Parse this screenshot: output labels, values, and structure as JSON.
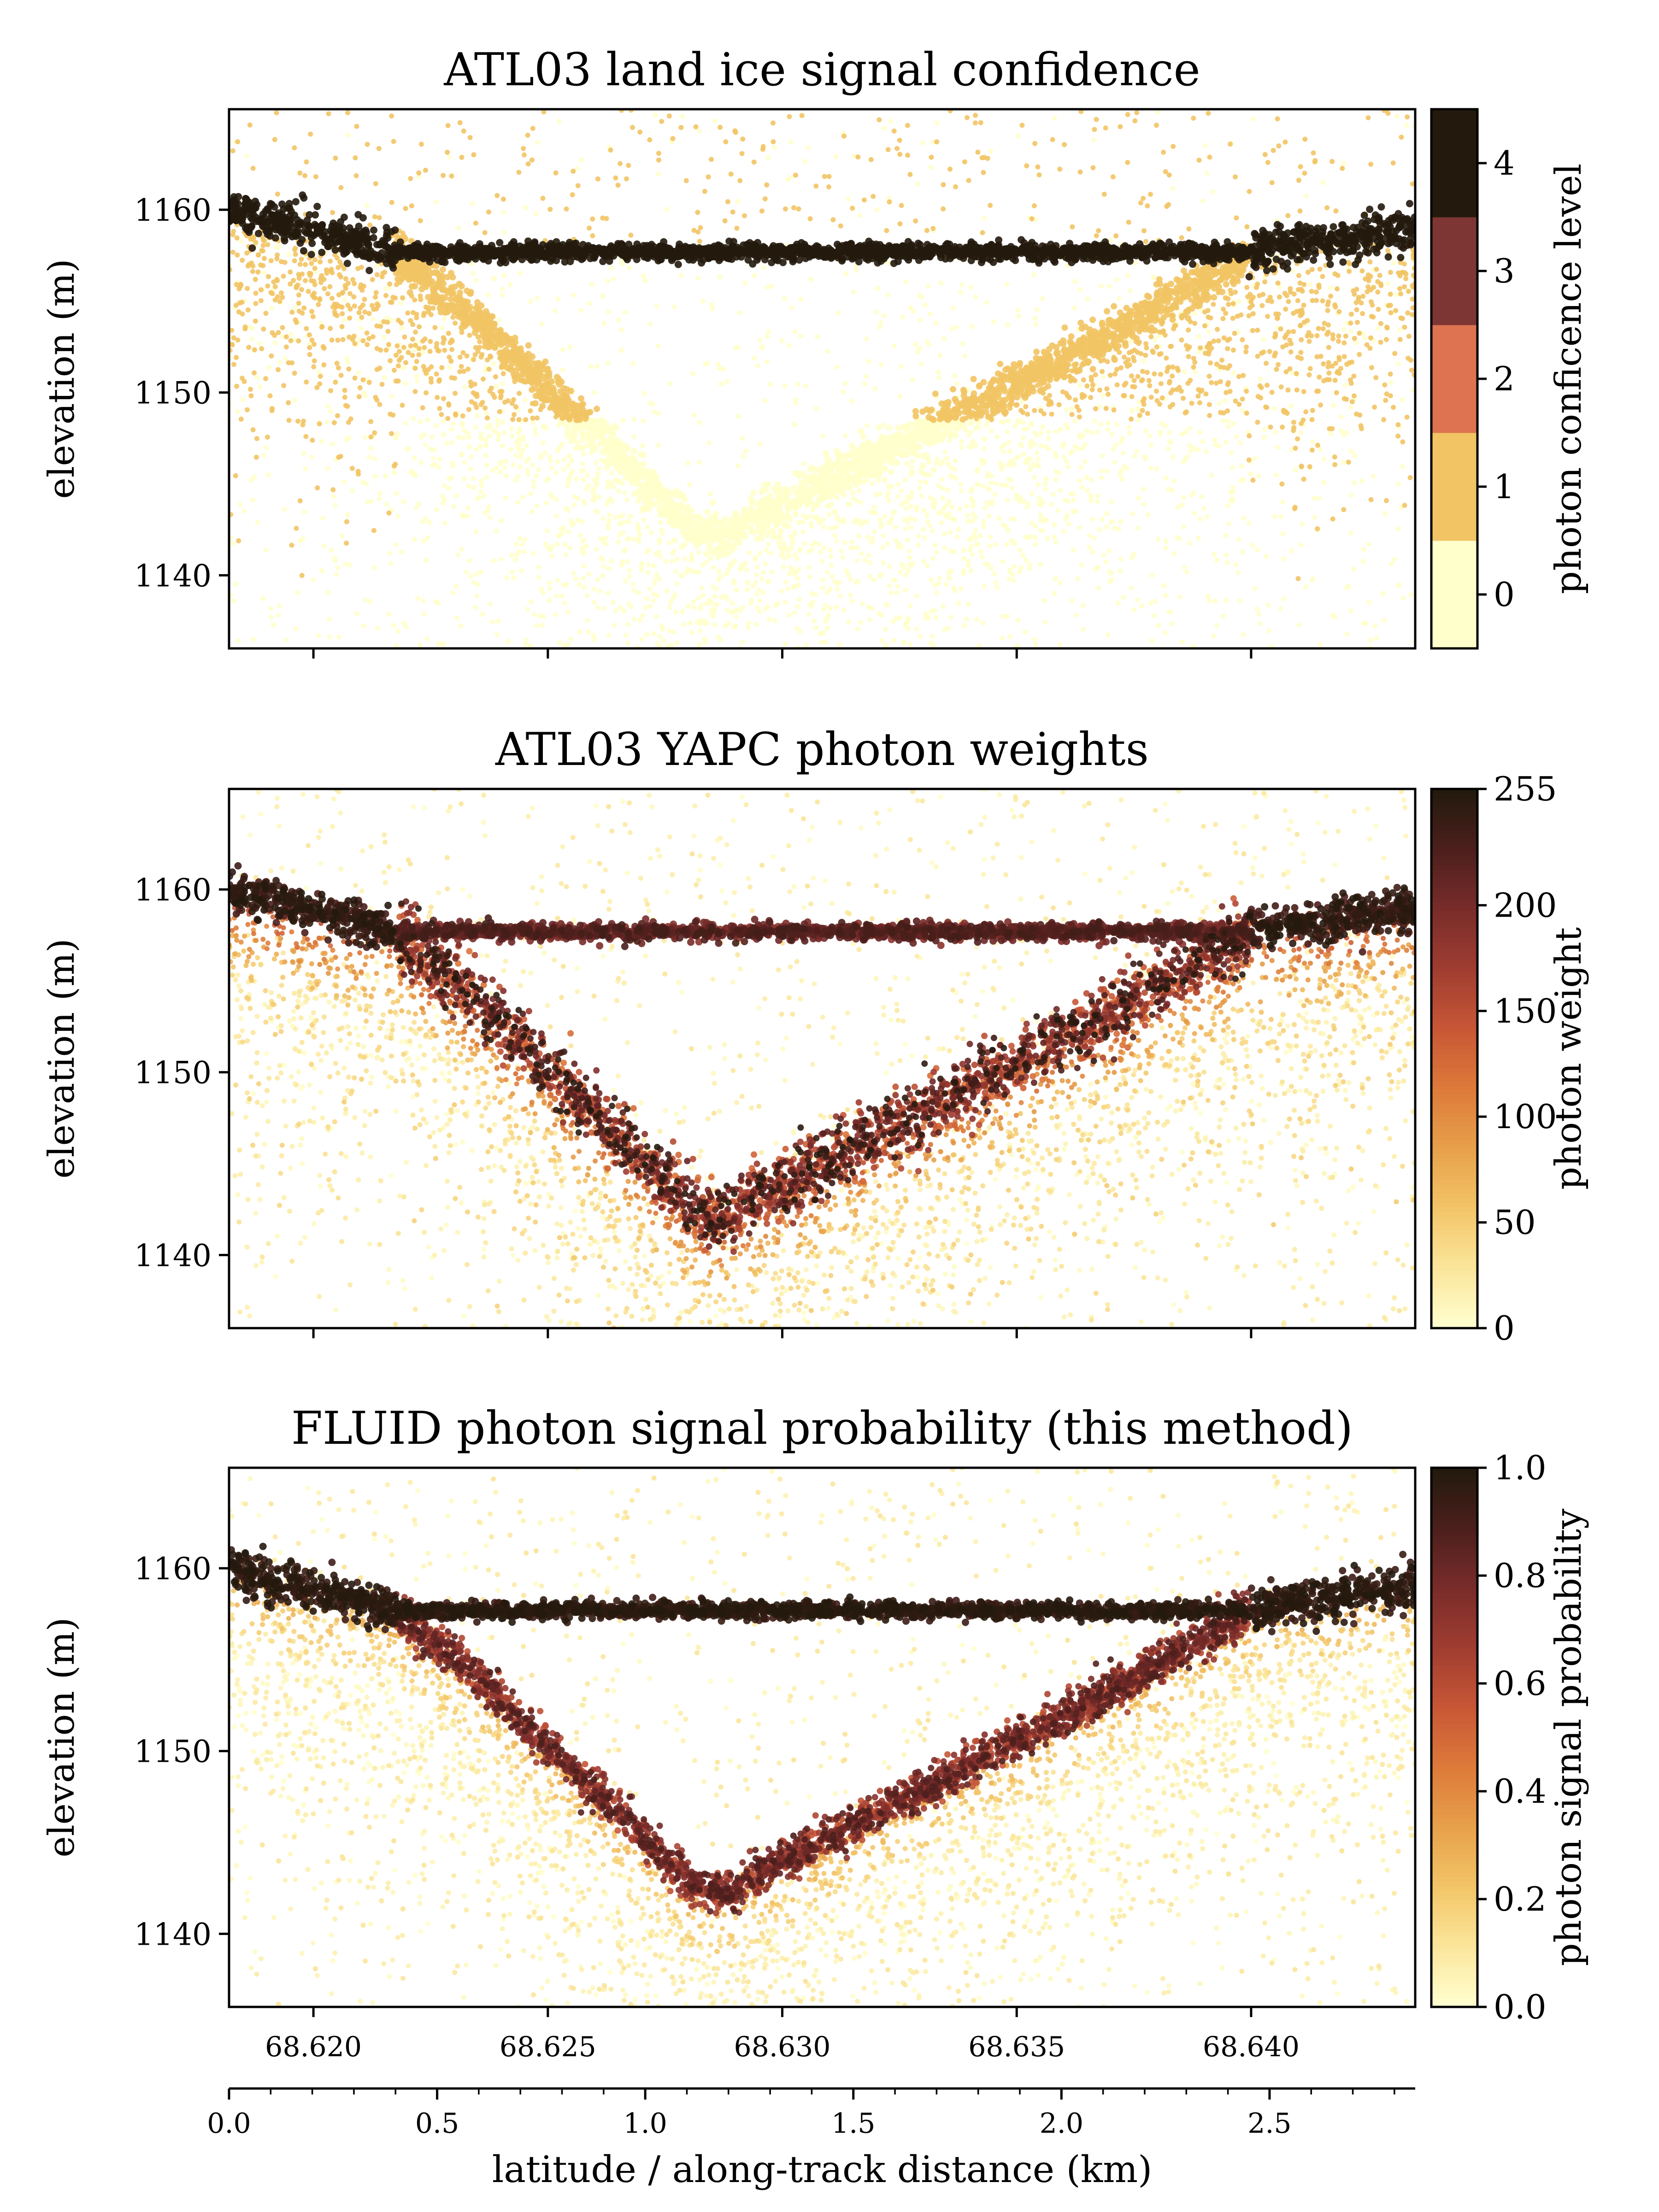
{
  "colors": {
    "cmap": [
      "#ffffcf",
      "#fbe59a",
      "#f3c467",
      "#e7a04a",
      "#dd7a3a",
      "#c85736",
      "#a03d31",
      "#7a2c2a",
      "#4d1f1d",
      "#231a0d"
    ],
    "frame": "#000000",
    "background": "#ffffff"
  },
  "figure": {
    "xlabel": "latitude / along-track distance (km)",
    "latitude_ticks": [
      "68.620",
      "68.625",
      "68.630",
      "68.635",
      "68.640"
    ],
    "latitude_values": [
      68.62,
      68.625,
      68.63,
      68.635,
      68.64
    ],
    "distance_ticks": [
      "0.0",
      "0.5",
      "1.0",
      "1.5",
      "2.0",
      "2.5"
    ],
    "distance_values": [
      0.0,
      0.5,
      1.0,
      1.5,
      2.0,
      2.5
    ],
    "distance_range_km": [
      0.0,
      2.85
    ],
    "latitude_range": [
      68.6182,
      68.6435
    ]
  },
  "chart_data": [
    {
      "type": "scatter",
      "title": "ATL03 land ice signal confidence",
      "xlabel": "",
      "ylabel": "elevation (m)",
      "ylim": [
        1136,
        1165.5
      ],
      "yticks": [
        "1140",
        "1150",
        "1160"
      ],
      "colorbar": {
        "label": "photon conficence level",
        "discrete": true,
        "range": [
          -0.5,
          4.5
        ],
        "ticks": [
          "0",
          "1",
          "2",
          "3",
          "4"
        ],
        "level_colors": [
          "#ffffcc",
          "#f2c464",
          "#dd7350",
          "#7d3633",
          "#231a0d"
        ]
      },
      "features": {
        "lake_surface_elevation": 1157.7,
        "lake_bed_min_elevation": 1142.5,
        "lake_bed_min_distance_km": 1.15,
        "ice_surface_left_elevation": 1160.0,
        "ice_surface_right_elevation": 1159.0
      }
    },
    {
      "type": "scatter",
      "title": "ATL03 YAPC photon weights",
      "xlabel": "",
      "ylabel": "elevation (m)",
      "ylim": [
        1136,
        1165.5
      ],
      "yticks": [
        "1140",
        "1150",
        "1160"
      ],
      "colorbar": {
        "label": "photon weight",
        "discrete": false,
        "range": [
          0,
          255
        ],
        "ticks": [
          "0",
          "50",
          "100",
          "150",
          "200",
          "255"
        ],
        "tick_values": [
          0,
          50,
          100,
          150,
          200,
          255
        ]
      },
      "features": {
        "lake_surface_elevation": 1157.7,
        "lake_bed_min_elevation": 1142.0,
        "lake_bed_min_distance_km": 1.15
      }
    },
    {
      "type": "scatter",
      "title": "FLUID photon signal probability (this method)",
      "xlabel": "latitude / along-track distance (km)",
      "ylabel": "elevation (m)",
      "ylim": [
        1136,
        1165.5
      ],
      "yticks": [
        "1140",
        "1150",
        "1160"
      ],
      "colorbar": {
        "label": "photon signal probability",
        "discrete": false,
        "range": [
          0,
          1
        ],
        "ticks": [
          "0.0",
          "0.2",
          "0.4",
          "0.6",
          "0.8",
          "1.0"
        ],
        "tick_values": [
          0.0,
          0.2,
          0.4,
          0.6,
          0.8,
          1.0
        ]
      },
      "features": {
        "lake_surface_elevation": 1157.7,
        "lake_bed_min_elevation": 1142.3,
        "lake_bed_min_distance_km": 1.17
      }
    }
  ]
}
